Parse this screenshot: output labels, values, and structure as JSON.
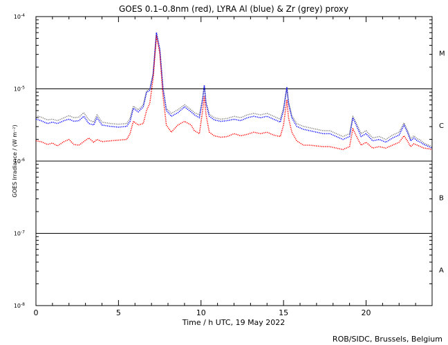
{
  "chart_data": {
    "type": "line",
    "title": "GOES 0.1–0.8nm (red), LYRA Al (blue) & Zr (grey) proxy",
    "xlabel": "Time / h UTC, 19 May 2022",
    "ylabel": "GOES Irradiance / (W m⁻²)",
    "credit": "ROB/SIDC, Brussels, Belgium",
    "xlim": [
      0,
      24
    ],
    "ylim_log10": [
      -8,
      -4
    ],
    "y_scale": "log",
    "grid": false,
    "x_ticks": [
      {
        "value": 0,
        "label": "0"
      },
      {
        "value": 5,
        "label": "5"
      },
      {
        "value": 10,
        "label": "10"
      },
      {
        "value": 15,
        "label": "15"
      },
      {
        "value": 20,
        "label": "20"
      }
    ],
    "y_ticks": [
      {
        "value": -8,
        "base": "10",
        "exp": "-8"
      },
      {
        "value": -7,
        "base": "10",
        "exp": "-7"
      },
      {
        "value": -6,
        "base": "10",
        "exp": "-6"
      },
      {
        "value": -5,
        "base": "10",
        "exp": "-5"
      },
      {
        "value": -4,
        "base": "10",
        "exp": "-4"
      }
    ],
    "flare_class_lines": [
      -7,
      -6,
      -5
    ],
    "flare_classes": [
      {
        "label": "A",
        "log_center": -7.5
      },
      {
        "label": "B",
        "log_center": -6.5
      },
      {
        "label": "C",
        "log_center": -5.5
      },
      {
        "label": "M",
        "log_center": -4.5
      }
    ],
    "series": [
      {
        "name": "GOES 0.1–0.8nm",
        "color": "#ff0000",
        "x": [
          0.0,
          0.3,
          0.7,
          1.0,
          1.3,
          1.7,
          2.0,
          2.3,
          2.6,
          2.9,
          3.2,
          3.5,
          3.7,
          4.0,
          4.5,
          5.0,
          5.5,
          5.7,
          5.9,
          6.2,
          6.5,
          6.7,
          6.9,
          7.1,
          7.3,
          7.5,
          7.7,
          7.9,
          8.2,
          8.6,
          9.0,
          9.4,
          9.6,
          9.9,
          10.1,
          10.2,
          10.3,
          10.5,
          10.8,
          11.2,
          11.6,
          12.0,
          12.4,
          12.8,
          13.2,
          13.6,
          14.0,
          14.4,
          14.8,
          15.0,
          15.2,
          15.3,
          15.5,
          15.8,
          16.2,
          16.6,
          17.0,
          17.4,
          17.8,
          18.2,
          18.6,
          19.0,
          19.2,
          19.4,
          19.7,
          20.0,
          20.4,
          20.8,
          21.2,
          21.6,
          22.0,
          22.3,
          22.5,
          22.7,
          22.9,
          23.1,
          23.3,
          23.5,
          23.8,
          24.0
        ],
        "logy": [
          -5.72,
          -5.73,
          -5.77,
          -5.75,
          -5.79,
          -5.73,
          -5.7,
          -5.77,
          -5.78,
          -5.73,
          -5.68,
          -5.74,
          -5.7,
          -5.73,
          -5.72,
          -5.71,
          -5.7,
          -5.62,
          -5.45,
          -5.5,
          -5.48,
          -5.3,
          -5.2,
          -4.85,
          -4.27,
          -4.5,
          -5.1,
          -5.5,
          -5.6,
          -5.5,
          -5.45,
          -5.5,
          -5.58,
          -5.62,
          -5.3,
          -5.1,
          -5.35,
          -5.6,
          -5.65,
          -5.67,
          -5.66,
          -5.62,
          -5.65,
          -5.63,
          -5.6,
          -5.62,
          -5.6,
          -5.64,
          -5.66,
          -5.5,
          -5.15,
          -5.4,
          -5.6,
          -5.72,
          -5.78,
          -5.78,
          -5.79,
          -5.8,
          -5.8,
          -5.82,
          -5.84,
          -5.8,
          -5.55,
          -5.65,
          -5.78,
          -5.74,
          -5.82,
          -5.8,
          -5.82,
          -5.78,
          -5.74,
          -5.65,
          -5.72,
          -5.8,
          -5.76,
          -5.78,
          -5.8,
          -5.82,
          -5.83,
          -5.84
        ]
      },
      {
        "name": "LYRA Al proxy",
        "color": "#0000ff",
        "x": [
          0.0,
          0.3,
          0.7,
          1.0,
          1.3,
          1.7,
          2.0,
          2.3,
          2.6,
          2.9,
          3.2,
          3.5,
          3.7,
          4.0,
          4.5,
          5.0,
          5.5,
          5.7,
          5.9,
          6.2,
          6.5,
          6.7,
          6.9,
          7.1,
          7.3,
          7.5,
          7.7,
          7.9,
          8.2,
          8.6,
          9.0,
          9.4,
          9.6,
          9.9,
          10.1,
          10.2,
          10.3,
          10.5,
          10.8,
          11.2,
          11.6,
          12.0,
          12.4,
          12.8,
          13.2,
          13.6,
          14.0,
          14.4,
          14.8,
          15.0,
          15.2,
          15.3,
          15.5,
          15.8,
          16.2,
          16.6,
          17.0,
          17.4,
          17.8,
          18.2,
          18.6,
          19.0,
          19.2,
          19.4,
          19.7,
          20.0,
          20.4,
          20.8,
          21.2,
          21.6,
          22.0,
          22.3,
          22.5,
          22.7,
          22.9,
          23.1,
          23.3,
          23.5,
          23.8,
          24.0
        ],
        "logy": [
          -5.42,
          -5.44,
          -5.48,
          -5.46,
          -5.48,
          -5.44,
          -5.42,
          -5.45,
          -5.44,
          -5.38,
          -5.48,
          -5.5,
          -5.4,
          -5.5,
          -5.52,
          -5.53,
          -5.52,
          -5.45,
          -5.27,
          -5.32,
          -5.25,
          -5.05,
          -5.02,
          -4.8,
          -4.22,
          -4.45,
          -5.0,
          -5.3,
          -5.38,
          -5.33,
          -5.25,
          -5.32,
          -5.36,
          -5.4,
          -5.15,
          -4.95,
          -5.2,
          -5.38,
          -5.43,
          -5.45,
          -5.44,
          -5.42,
          -5.44,
          -5.4,
          -5.38,
          -5.4,
          -5.38,
          -5.42,
          -5.46,
          -5.3,
          -4.98,
          -5.2,
          -5.4,
          -5.52,
          -5.56,
          -5.58,
          -5.6,
          -5.62,
          -5.62,
          -5.66,
          -5.7,
          -5.66,
          -5.4,
          -5.5,
          -5.66,
          -5.62,
          -5.72,
          -5.7,
          -5.74,
          -5.68,
          -5.64,
          -5.5,
          -5.6,
          -5.72,
          -5.68,
          -5.72,
          -5.74,
          -5.77,
          -5.8,
          -5.82
        ]
      },
      {
        "name": "LYRA Zr proxy",
        "color": "#808080",
        "x": [
          0.0,
          0.3,
          0.7,
          1.0,
          1.3,
          1.7,
          2.0,
          2.3,
          2.6,
          2.9,
          3.2,
          3.5,
          3.7,
          4.0,
          4.5,
          5.0,
          5.5,
          5.7,
          5.9,
          6.2,
          6.5,
          6.7,
          6.9,
          7.1,
          7.3,
          7.5,
          7.7,
          7.9,
          8.2,
          8.6,
          9.0,
          9.4,
          9.6,
          9.9,
          10.1,
          10.2,
          10.3,
          10.5,
          10.8,
          11.2,
          11.6,
          12.0,
          12.4,
          12.8,
          13.2,
          13.6,
          14.0,
          14.4,
          14.8,
          15.0,
          15.2,
          15.3,
          15.5,
          15.8,
          16.2,
          16.6,
          17.0,
          17.4,
          17.8,
          18.2,
          18.6,
          19.0,
          19.2,
          19.4,
          19.7,
          20.0,
          20.4,
          20.8,
          21.2,
          21.6,
          22.0,
          22.3,
          22.5,
          22.7,
          22.9,
          23.1,
          23.3,
          23.5,
          23.8,
          24.0
        ],
        "logy": [
          -5.37,
          -5.39,
          -5.43,
          -5.42,
          -5.44,
          -5.4,
          -5.37,
          -5.4,
          -5.39,
          -5.33,
          -5.43,
          -5.46,
          -5.36,
          -5.46,
          -5.48,
          -5.49,
          -5.48,
          -5.41,
          -5.24,
          -5.29,
          -5.22,
          -5.03,
          -5.0,
          -4.79,
          -4.23,
          -4.45,
          -4.98,
          -5.27,
          -5.34,
          -5.29,
          -5.22,
          -5.29,
          -5.33,
          -5.36,
          -5.13,
          -4.95,
          -5.18,
          -5.35,
          -5.4,
          -5.42,
          -5.41,
          -5.38,
          -5.4,
          -5.36,
          -5.34,
          -5.36,
          -5.34,
          -5.38,
          -5.42,
          -5.27,
          -4.98,
          -5.18,
          -5.37,
          -5.48,
          -5.52,
          -5.54,
          -5.56,
          -5.58,
          -5.58,
          -5.62,
          -5.66,
          -5.62,
          -5.38,
          -5.47,
          -5.62,
          -5.58,
          -5.68,
          -5.66,
          -5.7,
          -5.64,
          -5.6,
          -5.47,
          -5.57,
          -5.69,
          -5.65,
          -5.69,
          -5.71,
          -5.75,
          -5.78,
          -5.8
        ]
      }
    ]
  }
}
